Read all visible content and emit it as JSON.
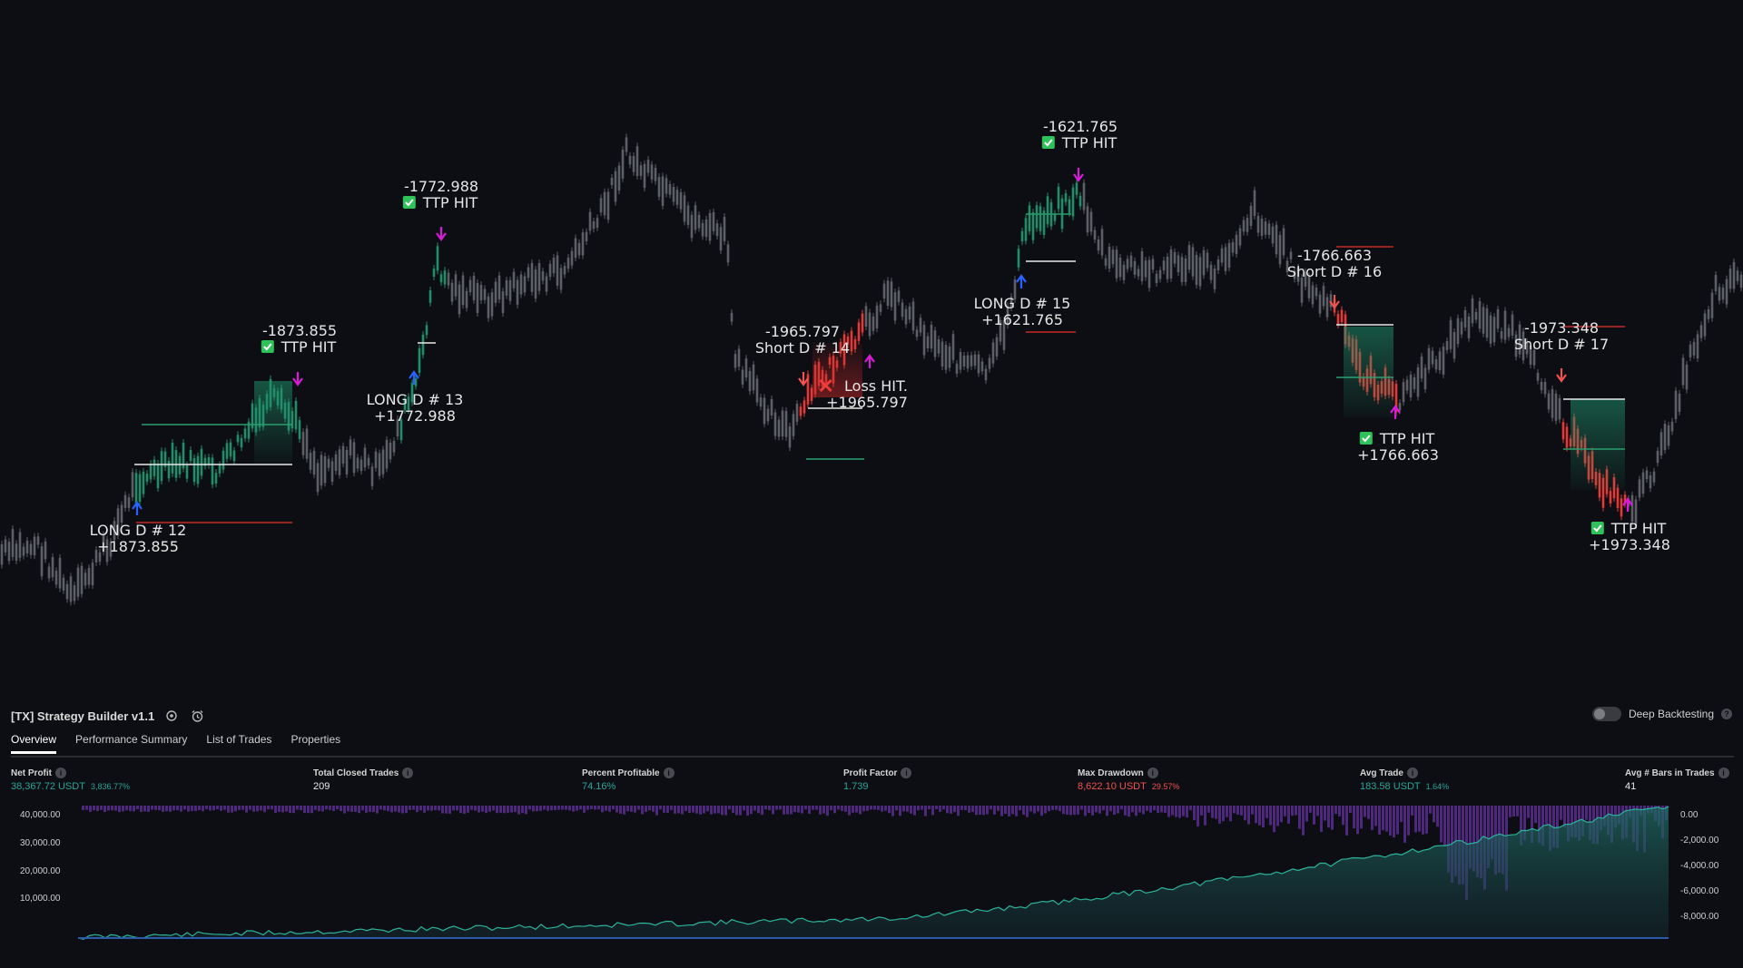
{
  "chart": {
    "annotations": [
      {
        "id": "long12",
        "lines": [
          "LONG D # 12",
          "+1873.855"
        ]
      },
      {
        "id": "ttp12",
        "lines": [
          "-1873.855",
          "TTP HIT"
        ],
        "check": true
      },
      {
        "id": "long13",
        "lines": [
          "LONG D # 13",
          "+1772.988"
        ]
      },
      {
        "id": "ttp13",
        "lines": [
          "-1772.988",
          "TTP HIT"
        ],
        "check": true
      },
      {
        "id": "short14",
        "lines": [
          "-1965.797",
          "Short D # 14"
        ]
      },
      {
        "id": "loss14",
        "lines": [
          "Loss HIT.",
          "+1965.797"
        ],
        "cross": true
      },
      {
        "id": "long15",
        "lines": [
          "LONG D # 15",
          "+1621.765"
        ]
      },
      {
        "id": "ttp15",
        "lines": [
          "-1621.765",
          "TTP HIT"
        ],
        "check": true
      },
      {
        "id": "short16",
        "lines": [
          "-1766.663",
          "Short D # 16"
        ]
      },
      {
        "id": "ttp16",
        "lines": [
          "TTP HIT",
          "+1766.663"
        ],
        "check": true
      },
      {
        "id": "short17",
        "lines": [
          "-1973.348",
          "Short D # 17"
        ]
      },
      {
        "id": "ttp17",
        "lines": [
          "TTP HIT",
          "+1973.348"
        ],
        "check": true
      }
    ]
  },
  "panel": {
    "title": "[TX] Strategy Builder v1.1",
    "deep_backtesting_label": "Deep Backtesting",
    "tabs": [
      "Overview",
      "Performance Summary",
      "List of Trades",
      "Properties"
    ],
    "metrics": [
      {
        "label": "Net Profit",
        "value": "38,367.72 USDT",
        "sub": "3,836.77%",
        "color": "green"
      },
      {
        "label": "Total Closed Trades",
        "value": "209",
        "sub": "",
        "color": "white"
      },
      {
        "label": "Percent Profitable",
        "value": "74.16%",
        "sub": "",
        "color": "green"
      },
      {
        "label": "Profit Factor",
        "value": "1.739",
        "sub": "",
        "color": "green"
      },
      {
        "label": "Max Drawdown",
        "value": "8,622.10 USDT",
        "sub": "29.57%",
        "color": "red"
      },
      {
        "label": "Avg Trade",
        "value": "183.58 USDT",
        "sub": "1.64%",
        "color": "green"
      },
      {
        "label": "Avg # Bars in Trades",
        "value": "41",
        "sub": "",
        "color": "white"
      }
    ],
    "left_axis": [
      "40,000.00",
      "30,000.00",
      "20,000.00",
      "10,000.00"
    ],
    "right_axis": [
      "0.00",
      "-2,000.00",
      "-4,000.00",
      "-6,000.00",
      "-8,000.00"
    ]
  },
  "colors": {
    "background": "#0d0e13",
    "candle": "#5c5f66",
    "long_trade": "#1f8f6a",
    "short_trade": "#e53935",
    "entry_arrow": "#2962ff",
    "exit_arrow": "#d81bd8",
    "equity_fill": "#1d5c56",
    "drawdown": "#5b2d91"
  }
}
